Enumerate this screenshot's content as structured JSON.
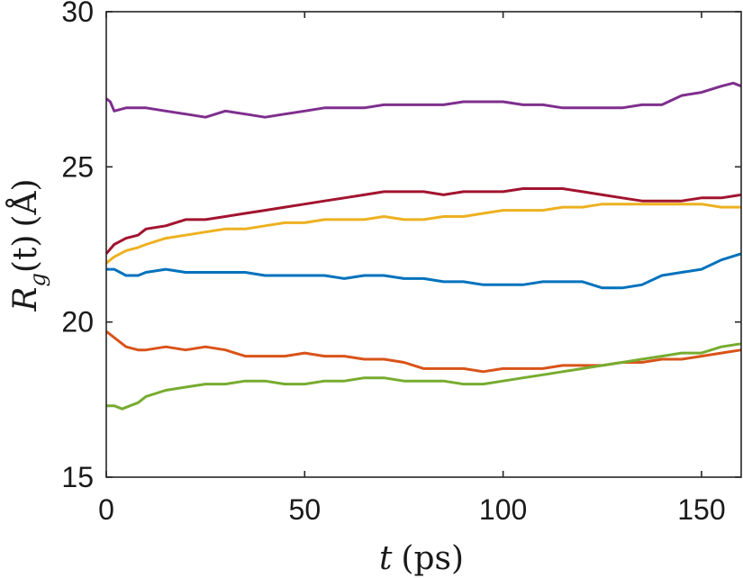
{
  "chart_data": {
    "type": "line",
    "xlabel": "t (ps)",
    "ylabel": "R_g(t) (Å)",
    "xlabel_parts": {
      "var": "t",
      "unit": "(ps)"
    },
    "ylabel_parts": {
      "var": "R",
      "sub": "g",
      "arg": "(t)",
      "unit": "(Å)"
    },
    "xlim": [
      0,
      160
    ],
    "ylim": [
      15,
      30
    ],
    "xticks": [
      0,
      50,
      100,
      150
    ],
    "yticks": [
      15,
      20,
      25,
      30
    ],
    "xtick_labels": [
      "0",
      "50",
      "100",
      "150"
    ],
    "ytick_labels": [
      "15",
      "20",
      "25",
      "30"
    ],
    "grid": false,
    "legend": "none",
    "series": [
      {
        "color": "#7E2F8E",
        "x": [
          0,
          1,
          2,
          5,
          10,
          15,
          20,
          25,
          30,
          35,
          40,
          45,
          50,
          55,
          60,
          65,
          70,
          75,
          80,
          85,
          90,
          95,
          100,
          105,
          110,
          115,
          120,
          125,
          130,
          135,
          140,
          145,
          150,
          155,
          158,
          160
        ],
        "y": [
          27.2,
          27.1,
          26.8,
          26.9,
          26.9,
          26.8,
          26.7,
          26.6,
          26.8,
          26.7,
          26.6,
          26.7,
          26.8,
          26.9,
          26.9,
          26.9,
          27.0,
          27.0,
          27.0,
          27.0,
          27.1,
          27.1,
          27.1,
          27.0,
          27.0,
          26.9,
          26.9,
          26.9,
          26.9,
          27.0,
          27.0,
          27.3,
          27.4,
          27.6,
          27.7,
          27.6
        ]
      },
      {
        "color": "#A2142F",
        "x": [
          0,
          2,
          5,
          8,
          10,
          15,
          20,
          25,
          30,
          35,
          40,
          45,
          50,
          55,
          60,
          65,
          70,
          75,
          80,
          85,
          90,
          95,
          100,
          105,
          110,
          115,
          120,
          125,
          130,
          135,
          140,
          145,
          150,
          155,
          160
        ],
        "y": [
          22.2,
          22.5,
          22.7,
          22.8,
          23.0,
          23.1,
          23.3,
          23.3,
          23.4,
          23.5,
          23.6,
          23.7,
          23.8,
          23.9,
          24.0,
          24.1,
          24.2,
          24.2,
          24.2,
          24.1,
          24.2,
          24.2,
          24.2,
          24.3,
          24.3,
          24.3,
          24.2,
          24.1,
          24.0,
          23.9,
          23.9,
          23.9,
          24.0,
          24.0,
          24.1
        ]
      },
      {
        "color": "#EDB120",
        "x": [
          0,
          2,
          5,
          8,
          10,
          15,
          20,
          25,
          30,
          35,
          40,
          45,
          50,
          55,
          60,
          65,
          70,
          75,
          80,
          85,
          90,
          95,
          100,
          105,
          110,
          115,
          120,
          125,
          130,
          135,
          140,
          145,
          150,
          155,
          160
        ],
        "y": [
          21.9,
          22.1,
          22.3,
          22.4,
          22.5,
          22.7,
          22.8,
          22.9,
          23.0,
          23.0,
          23.1,
          23.2,
          23.2,
          23.3,
          23.3,
          23.3,
          23.4,
          23.3,
          23.3,
          23.4,
          23.4,
          23.5,
          23.6,
          23.6,
          23.6,
          23.7,
          23.7,
          23.8,
          23.8,
          23.8,
          23.8,
          23.8,
          23.8,
          23.7,
          23.7
        ]
      },
      {
        "color": "#0072BD",
        "x": [
          0,
          2,
          5,
          8,
          10,
          15,
          20,
          25,
          30,
          35,
          40,
          45,
          50,
          55,
          60,
          65,
          70,
          75,
          80,
          85,
          90,
          95,
          100,
          105,
          110,
          115,
          120,
          125,
          130,
          135,
          140,
          145,
          150,
          155,
          160
        ],
        "y": [
          21.7,
          21.7,
          21.5,
          21.5,
          21.6,
          21.7,
          21.6,
          21.6,
          21.6,
          21.6,
          21.5,
          21.5,
          21.5,
          21.5,
          21.4,
          21.5,
          21.5,
          21.4,
          21.4,
          21.3,
          21.3,
          21.2,
          21.2,
          21.2,
          21.3,
          21.3,
          21.3,
          21.1,
          21.1,
          21.2,
          21.5,
          21.6,
          21.7,
          22.0,
          22.2
        ]
      },
      {
        "color": "#D95319",
        "x": [
          0,
          2,
          5,
          8,
          10,
          15,
          20,
          25,
          30,
          35,
          40,
          45,
          50,
          55,
          60,
          65,
          70,
          75,
          80,
          85,
          90,
          95,
          100,
          105,
          110,
          115,
          120,
          125,
          130,
          135,
          140,
          145,
          150,
          155,
          160
        ],
        "y": [
          19.7,
          19.5,
          19.2,
          19.1,
          19.1,
          19.2,
          19.1,
          19.2,
          19.1,
          18.9,
          18.9,
          18.9,
          19.0,
          18.9,
          18.9,
          18.8,
          18.8,
          18.7,
          18.5,
          18.5,
          18.5,
          18.4,
          18.5,
          18.5,
          18.5,
          18.6,
          18.6,
          18.6,
          18.7,
          18.7,
          18.8,
          18.8,
          18.9,
          19.0,
          19.1
        ]
      },
      {
        "color": "#77AC30",
        "x": [
          0,
          2,
          4,
          6,
          8,
          10,
          15,
          20,
          25,
          30,
          35,
          40,
          45,
          50,
          55,
          60,
          65,
          70,
          75,
          80,
          85,
          90,
          95,
          100,
          105,
          110,
          115,
          120,
          125,
          130,
          135,
          140,
          145,
          150,
          155,
          160
        ],
        "y": [
          17.3,
          17.3,
          17.2,
          17.3,
          17.4,
          17.6,
          17.8,
          17.9,
          18.0,
          18.0,
          18.1,
          18.1,
          18.0,
          18.0,
          18.1,
          18.1,
          18.2,
          18.2,
          18.1,
          18.1,
          18.1,
          18.0,
          18.0,
          18.1,
          18.2,
          18.3,
          18.4,
          18.5,
          18.6,
          18.7,
          18.8,
          18.9,
          19.0,
          19.0,
          19.2,
          19.3
        ]
      }
    ]
  }
}
